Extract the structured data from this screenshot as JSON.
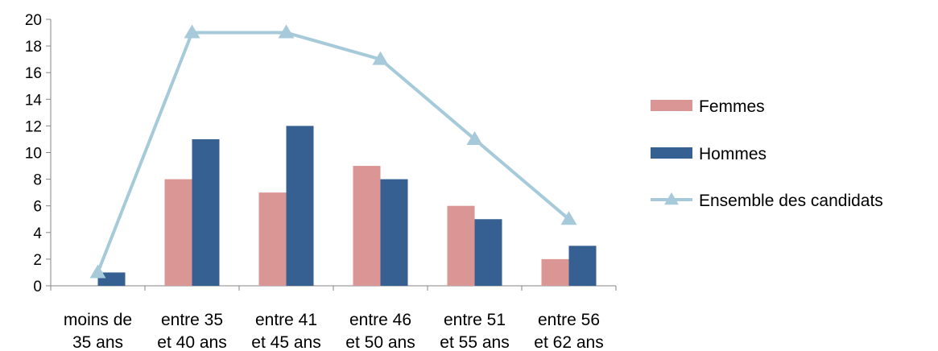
{
  "chart_data": {
    "type": "bar",
    "categories": [
      [
        "moins de",
        "35 ans"
      ],
      [
        "entre 35",
        "et 40 ans"
      ],
      [
        "entre 41",
        "et 45 ans"
      ],
      [
        "entre 46",
        "et 50 ans"
      ],
      [
        "entre 51",
        "et 55 ans"
      ],
      [
        "entre 56",
        "et 62 ans"
      ]
    ],
    "series": [
      {
        "name": "Femmes",
        "type": "bar",
        "color": "#d99694",
        "values": [
          0,
          8,
          7,
          9,
          6,
          2
        ]
      },
      {
        "name": "Hommes",
        "type": "bar",
        "color": "#376092",
        "values": [
          1,
          11,
          12,
          8,
          5,
          3
        ]
      },
      {
        "name": "Ensemble des candidats",
        "type": "line",
        "marker": "triangle",
        "color": "#a6cad9",
        "values": [
          1,
          19,
          19,
          17,
          11,
          5
        ]
      }
    ],
    "yticks": [
      "0",
      "2",
      "4",
      "6",
      "8",
      "10",
      "12",
      "14",
      "16",
      "18",
      "20"
    ],
    "ylim": [
      0,
      20
    ],
    "grid": false,
    "legend": "right"
  }
}
